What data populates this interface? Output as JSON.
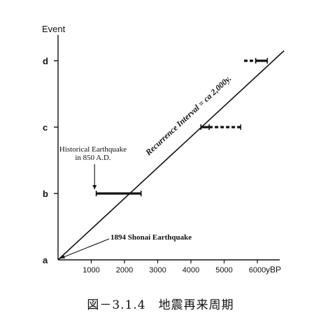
{
  "chart_data": {
    "type": "line",
    "title": "",
    "xlabel": "yBP",
    "ylabel": "Event",
    "x_ticks": [
      1000,
      2000,
      3000,
      4000,
      5000,
      6000
    ],
    "y_categories": [
      "a",
      "b",
      "c",
      "d"
    ],
    "xlim": [
      0,
      6600
    ],
    "line_label": "Recurrence Interval = ca 2,000y.",
    "line": {
      "x": [
        0,
        6800
      ],
      "y": [
        0,
        3.15
      ]
    },
    "ranges": [
      {
        "event": "b",
        "solid": [
          1150,
          2500
        ],
        "dashed": []
      },
      {
        "event": "c",
        "solid": [
          4300,
          4550
        ],
        "dashed": [
          4550,
          5500
        ]
      },
      {
        "event": "d",
        "solid": [
          5950,
          6300
        ],
        "dashed": [
          5600,
          5950
        ]
      }
    ],
    "annotations": [
      {
        "text": "Historical Earthquake",
        "text2": "in 850 A.D.",
        "target_x": 1100,
        "target_event": "b"
      },
      {
        "text": "1894 Shonai Earthquake",
        "target_x": 0,
        "target_event": "a"
      }
    ],
    "grid": false,
    "legend": "none"
  },
  "caption": "図－3.1.4　地震再来周期"
}
